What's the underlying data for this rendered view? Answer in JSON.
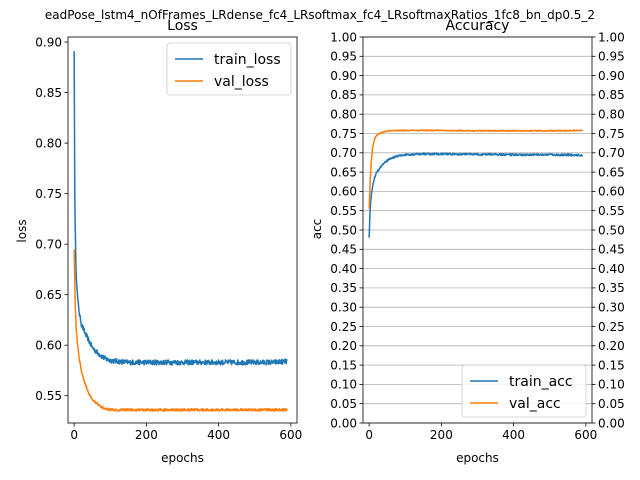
{
  "suptitle": "eadPose_lstm4_nOfFrames_LRdense_fc4_LRsoftmax_fc4_LRsoftmaxRatios_1fc8_bn_dp0.5_2",
  "colors": {
    "train": "#1f77b4",
    "val": "#ff7f0e",
    "grid": "#b0b0b0"
  },
  "chart_data": [
    {
      "type": "line",
      "title": "Loss",
      "xlabel": "epochs",
      "ylabel": "loss",
      "xlim": [
        -17,
        617
      ],
      "ylim": [
        0.523,
        0.905
      ],
      "xticks": [
        0,
        200,
        400,
        600
      ],
      "yticks": [
        0.55,
        0.6,
        0.65,
        0.7,
        0.75,
        0.8,
        0.85,
        0.9
      ],
      "grid": false,
      "legend_position": "upper-right",
      "series": [
        {
          "name": "train_loss",
          "color": "#1f77b4",
          "points": [
            [
              0,
              0.891
            ],
            [
              2,
              0.74
            ],
            [
              5,
              0.675
            ],
            [
              10,
              0.645
            ],
            [
              15,
              0.63
            ],
            [
              20,
              0.621
            ],
            [
              30,
              0.612
            ],
            [
              40,
              0.605
            ],
            [
              50,
              0.598
            ],
            [
              60,
              0.594
            ],
            [
              70,
              0.591
            ],
            [
              80,
              0.588
            ],
            [
              90,
              0.586
            ],
            [
              100,
              0.585
            ],
            [
              120,
              0.584
            ],
            [
              150,
              0.583
            ],
            [
              200,
              0.583
            ],
            [
              250,
              0.583
            ],
            [
              300,
              0.583
            ],
            [
              350,
              0.583
            ],
            [
              400,
              0.583
            ],
            [
              450,
              0.583
            ],
            [
              500,
              0.583
            ],
            [
              550,
              0.583
            ],
            [
              590,
              0.584
            ]
          ],
          "noise": 0.0025
        },
        {
          "name": "val_loss",
          "color": "#ff7f0e",
          "points": [
            [
              0,
              0.695
            ],
            [
              3,
              0.64
            ],
            [
              6,
              0.615
            ],
            [
              10,
              0.598
            ],
            [
              15,
              0.585
            ],
            [
              20,
              0.575
            ],
            [
              30,
              0.562
            ],
            [
              40,
              0.553
            ],
            [
              50,
              0.547
            ],
            [
              60,
              0.543
            ],
            [
              70,
              0.54
            ],
            [
              80,
              0.538
            ],
            [
              90,
              0.537
            ],
            [
              100,
              0.536
            ],
            [
              150,
              0.536
            ],
            [
              200,
              0.536
            ],
            [
              300,
              0.536
            ],
            [
              400,
              0.536
            ],
            [
              500,
              0.536
            ],
            [
              590,
              0.536
            ]
          ],
          "noise": 0.0012
        }
      ]
    },
    {
      "type": "line",
      "title": "Accuracy",
      "xlabel": "epochs",
      "ylabel": "acc",
      "xlim": [
        -17,
        617
      ],
      "ylim": [
        0,
        1
      ],
      "xticks": [
        0,
        200,
        400,
        600
      ],
      "yticks": [
        0.0,
        0.05,
        0.1,
        0.15,
        0.2,
        0.25,
        0.3,
        0.35,
        0.4,
        0.45,
        0.5,
        0.55,
        0.6,
        0.65,
        0.7,
        0.75,
        0.8,
        0.85,
        0.9,
        0.95,
        1.0
      ],
      "ytick_labels": [
        "0.00",
        "0.05",
        "0.10",
        "0.15",
        "0.20",
        "0.25",
        "0.30",
        "0.35",
        "0.40",
        "0.45",
        "0.50",
        "0.55",
        "0.60",
        "0.65",
        "0.70",
        "0.75",
        "0.80",
        "0.85",
        "0.90",
        "0.95",
        "1.00"
      ],
      "grid": true,
      "right_axis_ticks": true,
      "legend_position": "lower-right",
      "series": [
        {
          "name": "train_acc",
          "color": "#1f77b4",
          "points": [
            [
              0,
              0.48
            ],
            [
              3,
              0.56
            ],
            [
              6,
              0.59
            ],
            [
              10,
              0.615
            ],
            [
              15,
              0.635
            ],
            [
              20,
              0.648
            ],
            [
              30,
              0.662
            ],
            [
              40,
              0.672
            ],
            [
              50,
              0.68
            ],
            [
              60,
              0.685
            ],
            [
              70,
              0.689
            ],
            [
              80,
              0.692
            ],
            [
              100,
              0.695
            ],
            [
              150,
              0.697
            ],
            [
              200,
              0.697
            ],
            [
              300,
              0.696
            ],
            [
              400,
              0.695
            ],
            [
              500,
              0.695
            ],
            [
              590,
              0.694
            ]
          ],
          "noise": 0.0025
        },
        {
          "name": "val_acc",
          "color": "#ff7f0e",
          "points": [
            [
              0,
              0.555
            ],
            [
              3,
              0.63
            ],
            [
              6,
              0.68
            ],
            [
              10,
              0.715
            ],
            [
              15,
              0.735
            ],
            [
              20,
              0.745
            ],
            [
              30,
              0.751
            ],
            [
              40,
              0.754
            ],
            [
              50,
              0.756
            ],
            [
              60,
              0.757
            ],
            [
              80,
              0.758
            ],
            [
              100,
              0.758
            ],
            [
              200,
              0.758
            ],
            [
              300,
              0.757
            ],
            [
              400,
              0.757
            ],
            [
              500,
              0.757
            ],
            [
              590,
              0.758
            ]
          ],
          "noise": 0.0012
        }
      ]
    }
  ]
}
